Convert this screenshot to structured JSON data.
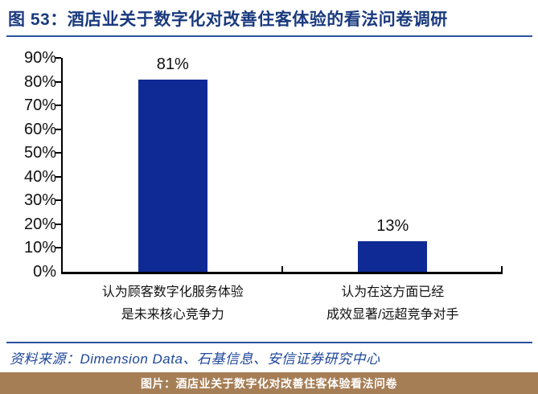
{
  "header": {
    "title": "图 53：酒店业关于数字化对改善住客体验的看法问卷调研"
  },
  "footer": {
    "source": "资料来源：Dimension Data、石基信息、安信证券研究中心",
    "caption": "图片：酒店业关于数字化对改善住客体验看法问卷"
  },
  "colors": {
    "title_text": "#1a3a7e",
    "rule_blue": "#2c52a0",
    "bar": "#0f2a94",
    "axis": "#000000",
    "label_text": "#111111",
    "source_text": "#20489b",
    "caption_bg": "#a67e56",
    "caption_text": "#ffffff"
  },
  "chart_data": {
    "type": "bar",
    "title": "酒店业关于数字化对改善住客体验的看法问卷调研",
    "categories": [
      [
        "认为顾客数字化服务体验",
        "是未来核心竞争力"
      ],
      [
        "认为在这方面已经",
        "成效显著/远超竞争对手"
      ]
    ],
    "values": [
      81,
      13
    ],
    "data_labels": [
      "81%",
      "13%"
    ],
    "xlabel": "",
    "ylabel": "",
    "ylim": [
      0,
      90
    ],
    "ytick_step": 10,
    "ytick_labels": [
      "0%",
      "10%",
      "20%",
      "30%",
      "40%",
      "50%",
      "60%",
      "70%",
      "80%",
      "90%"
    ],
    "grid": false,
    "legend": "none"
  }
}
